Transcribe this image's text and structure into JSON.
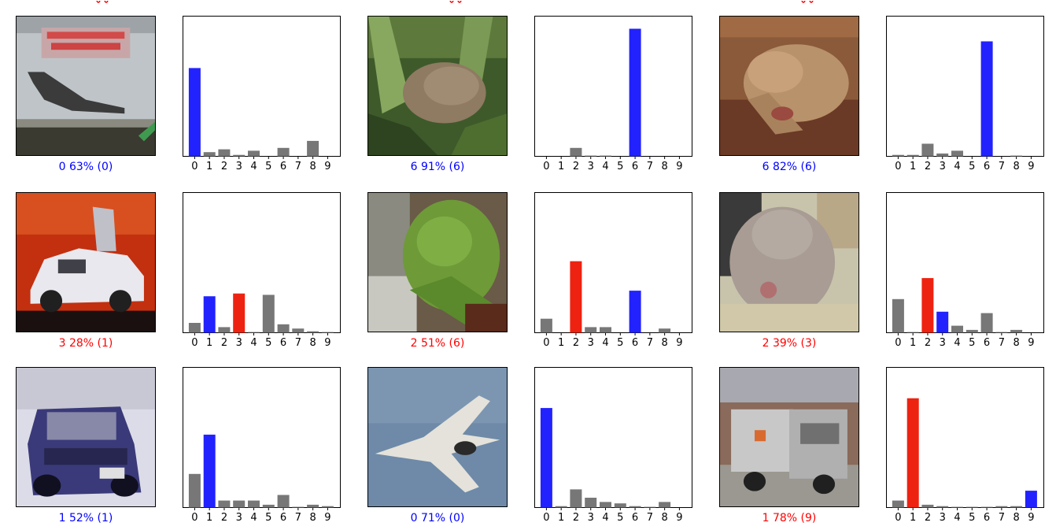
{
  "colors": {
    "correct": "#0000ff",
    "wrong": "#ff0000",
    "bar_default": "#777777",
    "bar_pred": "#2222ff",
    "bar_wrong": "#ee2211"
  },
  "panels": [
    {
      "image": "airliner-book-cover",
      "label_text": "0 63% (0)",
      "label_color": "correct",
      "chart_type": "bar"
    },
    {
      "image": "frog-in-grass",
      "label_text": "6 91% (6)",
      "label_color": "correct",
      "chart_type": "bar"
    },
    {
      "image": "toad-on-dirt",
      "label_text": "6 82% (6)",
      "label_color": "correct",
      "chart_type": "bar"
    },
    {
      "image": "white-car-open-doors",
      "label_text": "3 28% (1)",
      "label_color": "wrong",
      "chart_type": "bar"
    },
    {
      "image": "green-frog",
      "label_text": "2 51% (6)",
      "label_color": "wrong",
      "chart_type": "bar"
    },
    {
      "image": "grey-cat",
      "label_text": "2 39% (3)",
      "label_color": "wrong",
      "chart_type": "bar"
    },
    {
      "image": "blue-car",
      "label_text": "1 52% (1)",
      "label_color": "correct",
      "chart_type": "bar"
    },
    {
      "image": "fighter-jet",
      "label_text": "0 71% (0)",
      "label_color": "correct",
      "chart_type": "bar"
    },
    {
      "image": "grey-truck",
      "label_text": "1 78% (9)",
      "label_color": "wrong",
      "chart_type": "bar"
    }
  ],
  "chart_data": [
    {
      "type": "bar",
      "categories": [
        "0",
        "1",
        "2",
        "3",
        "4",
        "5",
        "6",
        "7",
        "8",
        "9"
      ],
      "values": [
        0.63,
        0.03,
        0.05,
        0.01,
        0.04,
        0.0,
        0.06,
        0.0,
        0.11,
        0.0
      ],
      "predicted": 0,
      "true_label": 0,
      "ylim": [
        0,
        1
      ],
      "grid": false
    },
    {
      "type": "bar",
      "categories": [
        "0",
        "1",
        "2",
        "3",
        "4",
        "5",
        "6",
        "7",
        "8",
        "9"
      ],
      "values": [
        0.0,
        0.0,
        0.06,
        0.005,
        0.005,
        0.0,
        0.91,
        0.0,
        0.0,
        0.0
      ],
      "predicted": 6,
      "true_label": 6,
      "ylim": [
        0,
        1
      ],
      "grid": false
    },
    {
      "type": "bar",
      "categories": [
        "0",
        "1",
        "2",
        "3",
        "4",
        "5",
        "6",
        "7",
        "8",
        "9"
      ],
      "values": [
        0.01,
        0.01,
        0.09,
        0.02,
        0.04,
        0.0,
        0.82,
        0.0,
        0.005,
        0.0
      ],
      "predicted": 6,
      "true_label": 6,
      "ylim": [
        0,
        1
      ],
      "grid": false
    },
    {
      "type": "bar",
      "categories": [
        "0",
        "1",
        "2",
        "3",
        "4",
        "5",
        "6",
        "7",
        "8",
        "9"
      ],
      "values": [
        0.07,
        0.26,
        0.04,
        0.28,
        0.005,
        0.27,
        0.06,
        0.03,
        0.01,
        0.005
      ],
      "predicted": 3,
      "true_label": 1,
      "ylim": [
        0,
        1
      ],
      "grid": false
    },
    {
      "type": "bar",
      "categories": [
        "0",
        "1",
        "2",
        "3",
        "4",
        "5",
        "6",
        "7",
        "8",
        "9"
      ],
      "values": [
        0.1,
        0.0,
        0.51,
        0.04,
        0.04,
        0.0,
        0.3,
        0.0,
        0.03,
        0.0
      ],
      "predicted": 2,
      "true_label": 6,
      "ylim": [
        0,
        1
      ],
      "grid": false
    },
    {
      "type": "bar",
      "categories": [
        "0",
        "1",
        "2",
        "3",
        "4",
        "5",
        "6",
        "7",
        "8",
        "9"
      ],
      "values": [
        0.24,
        0.005,
        0.39,
        0.15,
        0.05,
        0.02,
        0.14,
        0.005,
        0.02,
        0.0
      ],
      "predicted": 2,
      "true_label": 3,
      "ylim": [
        0,
        1
      ],
      "grid": false
    },
    {
      "type": "bar",
      "categories": [
        "0",
        "1",
        "2",
        "3",
        "4",
        "5",
        "6",
        "7",
        "8",
        "9"
      ],
      "values": [
        0.24,
        0.52,
        0.05,
        0.05,
        0.05,
        0.02,
        0.09,
        0.005,
        0.02,
        0.01
      ],
      "predicted": 1,
      "true_label": 1,
      "ylim": [
        0,
        1
      ],
      "grid": false
    },
    {
      "type": "bar",
      "categories": [
        "0",
        "1",
        "2",
        "3",
        "4",
        "5",
        "6",
        "7",
        "8",
        "9"
      ],
      "values": [
        0.71,
        0.01,
        0.13,
        0.07,
        0.04,
        0.03,
        0.01,
        0.005,
        0.04,
        0.0
      ],
      "predicted": 0,
      "true_label": 0,
      "ylim": [
        0,
        1
      ],
      "grid": false
    },
    {
      "type": "bar",
      "categories": [
        "0",
        "1",
        "2",
        "3",
        "4",
        "5",
        "6",
        "7",
        "8",
        "9"
      ],
      "values": [
        0.05,
        0.78,
        0.02,
        0.01,
        0.005,
        0.005,
        0.005,
        0.01,
        0.01,
        0.12
      ],
      "predicted": 1,
      "true_label": 9,
      "ylim": [
        0,
        1
      ],
      "grid": false
    }
  ]
}
